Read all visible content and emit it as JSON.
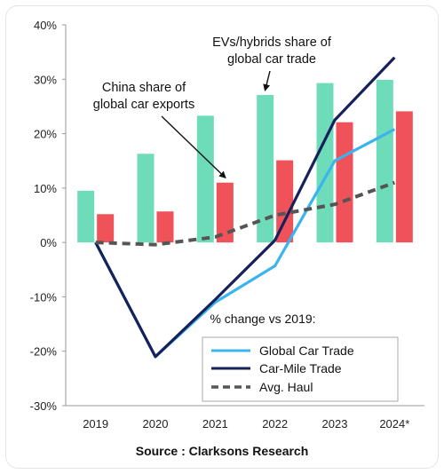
{
  "source": "Source : Clarksons Research",
  "chart_data": {
    "type": "bar",
    "categories": [
      "2019",
      "2020",
      "2021",
      "2022",
      "2023",
      "2024*"
    ],
    "ylim": [
      -30,
      40
    ],
    "yticks": [
      "40%",
      "30%",
      "20%",
      "10%",
      "0%",
      "-10%",
      "-20%",
      "-30%"
    ],
    "ytick_values": [
      40,
      30,
      20,
      10,
      0,
      -10,
      -20,
      -30
    ],
    "grid": false,
    "bar_series": [
      {
        "id": "evs",
        "label": "EVs/hybrids share of global car trade",
        "color": "#6fdcb9",
        "values": [
          9.5,
          16.3,
          23.3,
          27.1,
          29.3,
          29.9
        ]
      },
      {
        "id": "china",
        "label": "China share of global car exports",
        "color": "#f0525a",
        "values": [
          5.2,
          5.7,
          11,
          15.1,
          22.1,
          24.1
        ]
      }
    ],
    "annotations": [
      {
        "lines": [
          "EVs/hybrids share of",
          "global car trade"
        ],
        "points_to": "evs"
      },
      {
        "lines": [
          "China share of",
          "global car exports"
        ],
        "points_to": "china"
      }
    ],
    "legend": {
      "title": "% change vs 2019:",
      "placement": "bottom-right",
      "entries": [
        {
          "label": "Global Car Trade",
          "color": "#3ab4ee",
          "style": "solid"
        },
        {
          "label": "Car-Mile Trade",
          "color": "#16205a",
          "style": "solid"
        },
        {
          "label": "Avg. Haul",
          "color": "#555555",
          "style": "dashed"
        }
      ]
    },
    "line_series": [
      {
        "id": "global",
        "color": "#3ab4ee",
        "values": [
          0,
          -21,
          -11,
          -4.3,
          15,
          20.8
        ]
      },
      {
        "id": "carmile",
        "color": "#16205a",
        "values": [
          0,
          -21,
          -10.5,
          0.4,
          22.5,
          34
        ]
      },
      {
        "id": "haul",
        "color": "#555555",
        "dashed": true,
        "values": [
          0,
          -0.4,
          1,
          5,
          7,
          11
        ]
      }
    ]
  }
}
